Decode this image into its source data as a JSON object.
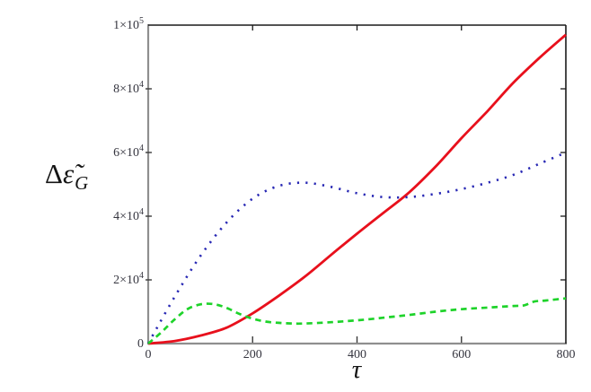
{
  "chart_data": {
    "type": "line",
    "title": "",
    "xlabel": "τ",
    "ylabel_delta": "Δ",
    "ylabel_epsilon": "ε̃",
    "ylabel_sub": "G",
    "xlim": [
      0,
      800
    ],
    "ylim": [
      0,
      100000
    ],
    "grid": false,
    "legend": "none",
    "frame_color": "#1a1a1a",
    "axis_color": "#8f8f8f",
    "tick_label_color": "#35353f",
    "x_ticks": [
      {
        "value": 0,
        "label": "0"
      },
      {
        "value": 200,
        "label": "200"
      },
      {
        "value": 400,
        "label": "400"
      },
      {
        "value": 600,
        "label": "600"
      },
      {
        "value": 800,
        "label": "800"
      }
    ],
    "y_ticks": [
      {
        "value": 0,
        "base": "0",
        "sup": ""
      },
      {
        "value": 20000,
        "base": "2×10",
        "sup": "4"
      },
      {
        "value": 40000,
        "base": "4×10",
        "sup": "4"
      },
      {
        "value": 60000,
        "base": "6×10",
        "sup": "4"
      },
      {
        "value": 80000,
        "base": "8×10",
        "sup": "4"
      },
      {
        "value": 100000,
        "base": "1×10",
        "sup": "5"
      }
    ],
    "series": [
      {
        "name": "red-solid",
        "color": "#e8101c",
        "style": "solid",
        "x": [
          0,
          50,
          100,
          150,
          200,
          250,
          300,
          350,
          400,
          450,
          500,
          550,
          600,
          650,
          700,
          750,
          800
        ],
        "y": [
          0,
          800,
          2500,
          5000,
          9500,
          15000,
          21000,
          27800,
          34500,
          41000,
          47500,
          55500,
          64500,
          73000,
          82000,
          89800,
          97000
        ]
      },
      {
        "name": "blue-dotted",
        "color": "#2828b4",
        "style": "dotted",
        "x": [
          0,
          50,
          100,
          150,
          200,
          250,
          300,
          350,
          400,
          450,
          500,
          550,
          600,
          650,
          700,
          750,
          800
        ],
        "y": [
          0,
          14500,
          27500,
          38000,
          45500,
          49500,
          50500,
          49200,
          47200,
          46000,
          46000,
          47000,
          48500,
          50500,
          53000,
          56500,
          60000
        ]
      },
      {
        "name": "green-dashed",
        "color": "#1ed32a",
        "style": "dashed",
        "x": [
          0,
          25,
          50,
          75,
          100,
          125,
          150,
          175,
          200,
          225,
          250,
          275,
          300,
          350,
          400,
          450,
          500,
          550,
          600,
          650,
          700,
          720,
          740,
          760,
          800
        ],
        "y": [
          0,
          3500,
          7500,
          10800,
          12300,
          12400,
          11200,
          9300,
          7800,
          6900,
          6500,
          6300,
          6300,
          6700,
          7300,
          8100,
          9000,
          10000,
          10800,
          11300,
          11800,
          12000,
          13200,
          13500,
          14200
        ]
      }
    ]
  }
}
